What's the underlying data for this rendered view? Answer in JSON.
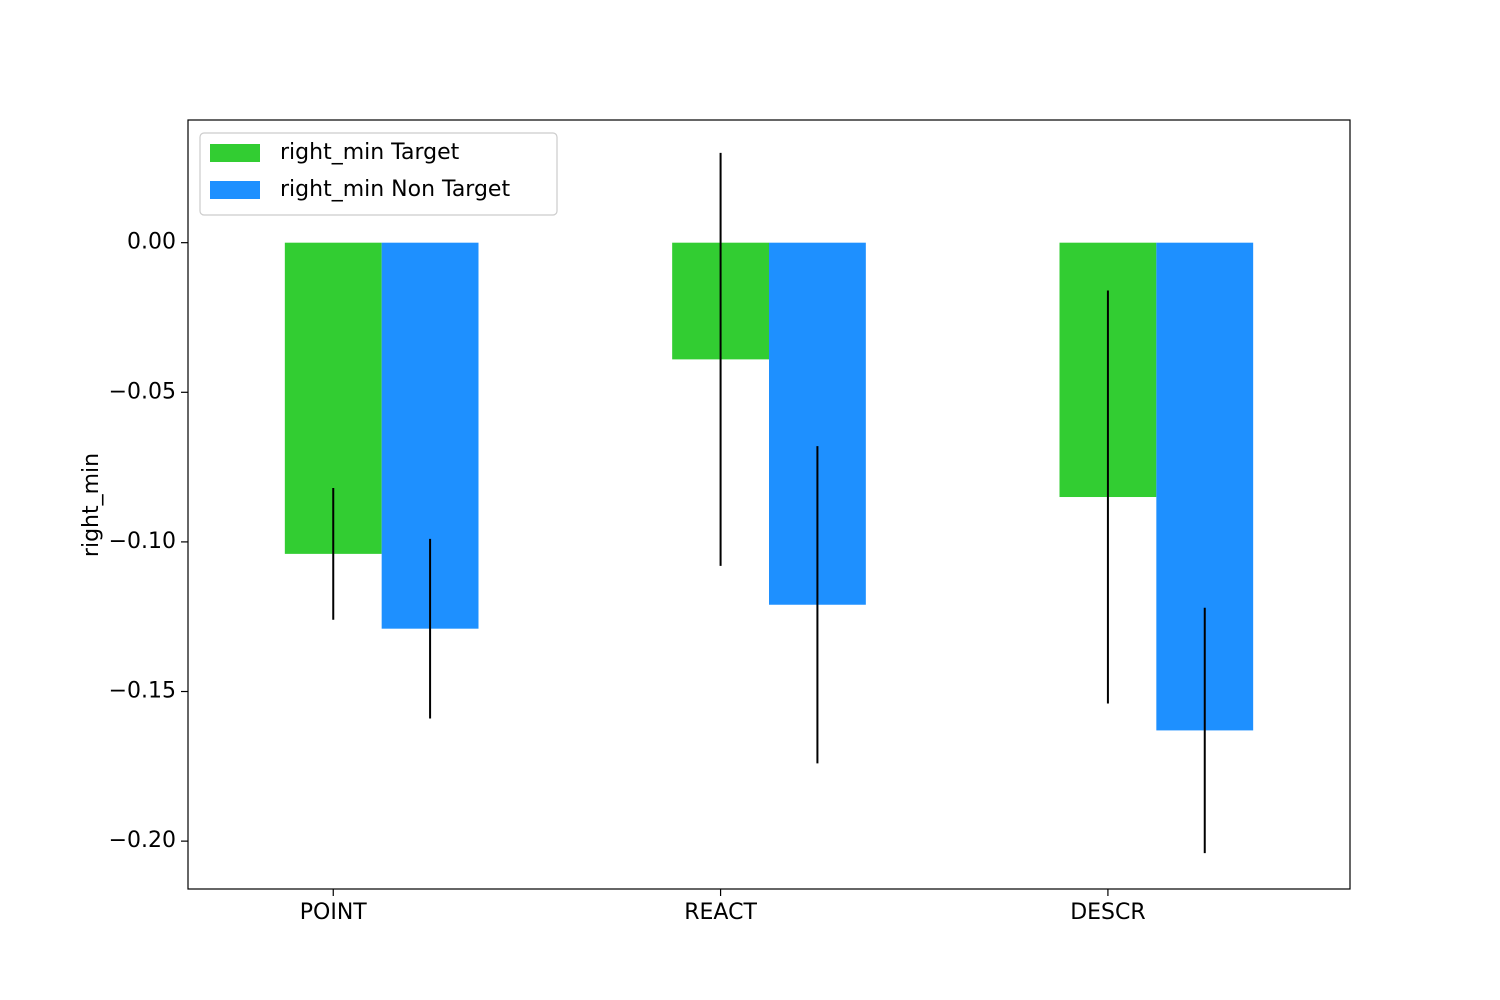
{
  "chart_data": {
    "type": "bar",
    "title": "",
    "xlabel": "",
    "ylabel": "right_min",
    "categories": [
      "POINT",
      "REACT",
      "DESCR"
    ],
    "ylim": [
      -0.216,
      0.041
    ],
    "yticks": [
      0.0,
      -0.05,
      -0.1,
      -0.15,
      -0.2
    ],
    "ytick_labels": [
      "0.00",
      "−0.05",
      "−0.10",
      "−0.15",
      "−0.20"
    ],
    "grid": false,
    "legend_position": "top-left",
    "series": [
      {
        "name": "right_min Target",
        "color": "#32cd32",
        "values": [
          -0.104,
          -0.039,
          -0.085
        ],
        "error": [
          0.022,
          0.069,
          0.069
        ]
      },
      {
        "name": "right_min Non Target",
        "color": "#1e90ff",
        "values": [
          -0.129,
          -0.121,
          -0.163
        ],
        "error": [
          0.03,
          0.053,
          0.041
        ]
      }
    ]
  }
}
